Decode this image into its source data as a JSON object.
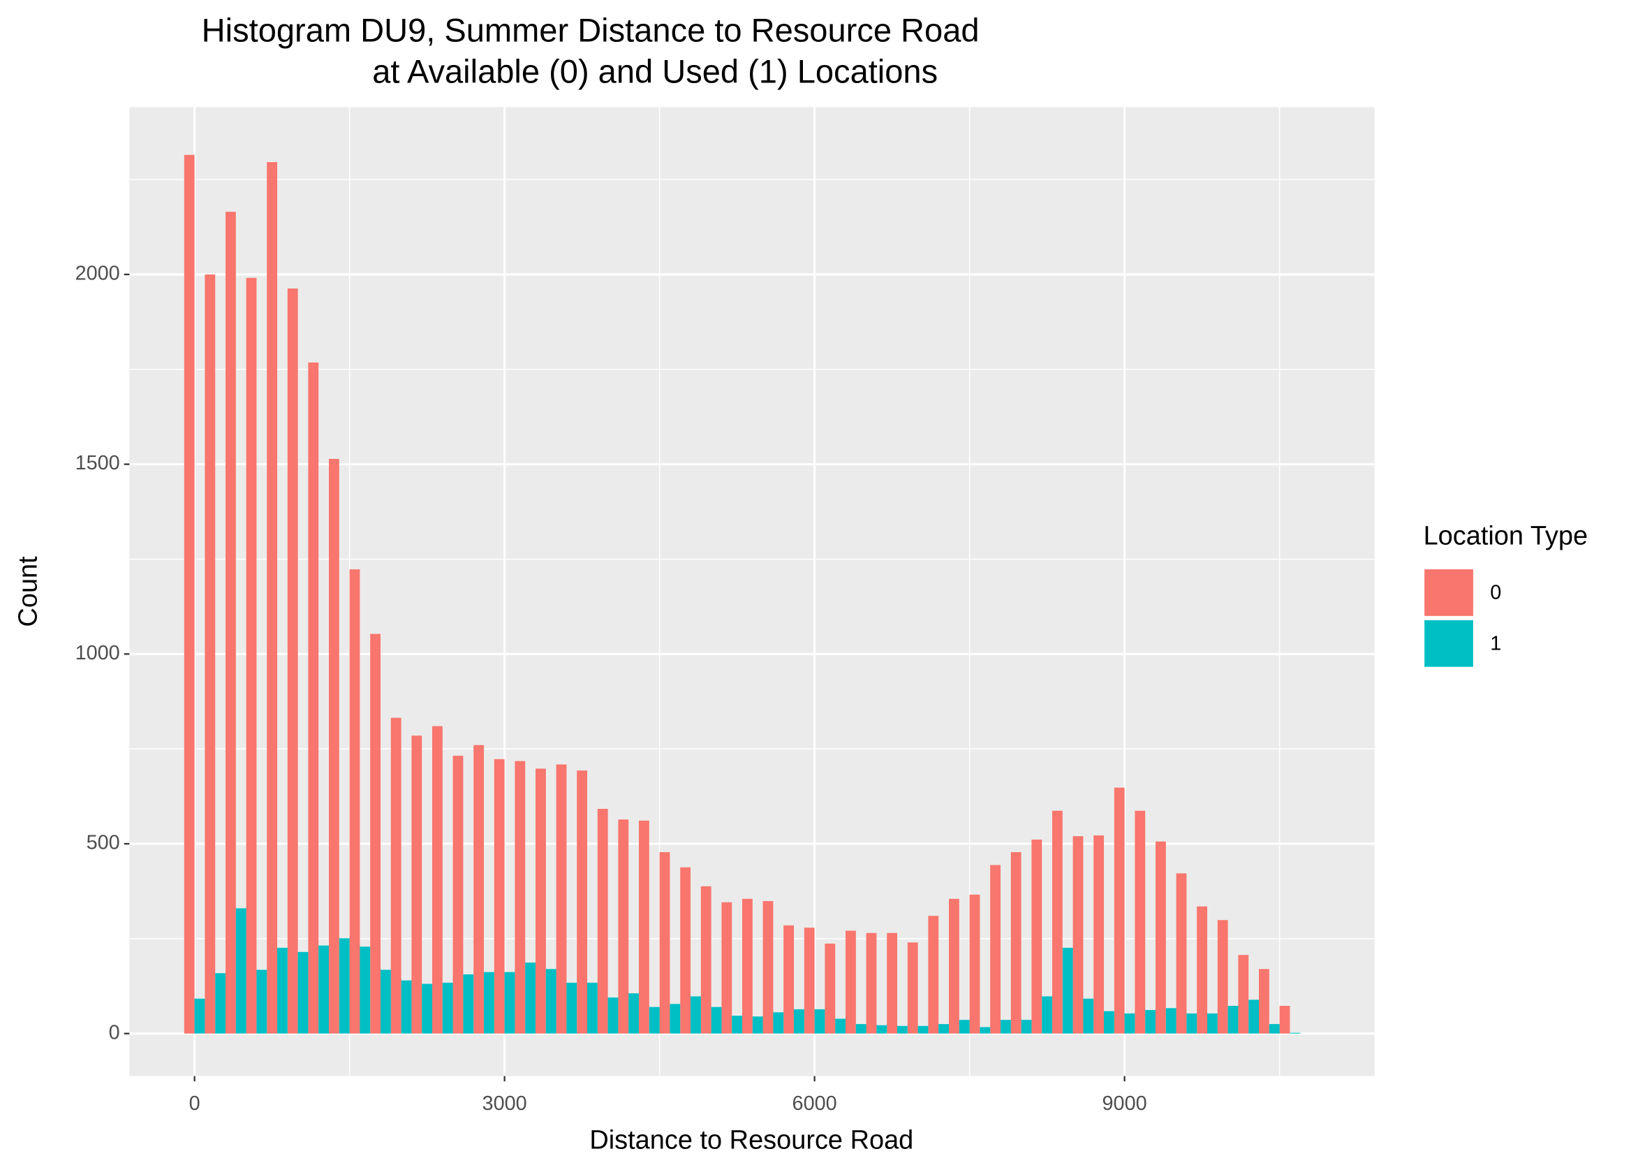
{
  "chart_data": {
    "type": "histogram",
    "title": "Histogram DU9, Summer Distance to Resource Road",
    "subtitle": "at Available (0) and Used (1) Locations",
    "x_label": "Distance to Resource Road",
    "y_label": "Count",
    "legend_title": "Location Type",
    "legend_position": "right",
    "grid": true,
    "bins": [
      -100,
      100,
      300,
      500,
      700,
      900,
      1100,
      1300,
      1500,
      1700,
      1900,
      2100,
      2300,
      2500,
      2700,
      2900,
      3100,
      3300,
      3500,
      3700,
      3900,
      4100,
      4300,
      4500,
      4700,
      4900,
      5100,
      5300,
      5500,
      5700,
      5900,
      6100,
      6300,
      6500,
      6700,
      6900,
      7100,
      7300,
      7500,
      7700,
      7900,
      8100,
      8300,
      8500,
      8700,
      8900,
      9100,
      9300,
      9500,
      9700,
      9900,
      10100,
      10300,
      10500,
      10700
    ],
    "series": [
      {
        "name": "0",
        "color": "#F8766D",
        "values": [
          2315,
          2000,
          2165,
          1991,
          2296,
          1963,
          1768,
          1514,
          1223,
          1053,
          832,
          785,
          810,
          732,
          760,
          723,
          718,
          698,
          709,
          693,
          592,
          564,
          561,
          478,
          438,
          388,
          346,
          355,
          349,
          285,
          279,
          237,
          271,
          265,
          265,
          240,
          310,
          355,
          366,
          444,
          478,
          511,
          587,
          520,
          522,
          648,
          587,
          506,
          422,
          335,
          299,
          207,
          170,
          73
        ]
      },
      {
        "name": "1",
        "color": "#00BFC4",
        "values": [
          92,
          159,
          330,
          168,
          226,
          215,
          232,
          251,
          229,
          168,
          140,
          131,
          134,
          156,
          162,
          162,
          187,
          170,
          134,
          134,
          95,
          106,
          70,
          78,
          98,
          70,
          47,
          45,
          56,
          64,
          64,
          39,
          25,
          22,
          20,
          20,
          25,
          36,
          17,
          36,
          36,
          98,
          226,
          92,
          59,
          53,
          62,
          67,
          53,
          53,
          73,
          89,
          25,
          2
        ]
      }
    ],
    "xlim": [
      -630,
      11420
    ],
    "ylim": [
      -112,
      2441
    ],
    "xticks": [
      0,
      3000,
      6000,
      9000
    ],
    "yticks": [
      0,
      500,
      1000,
      1500,
      2000
    ],
    "x_minor_grid": [
      1500,
      4500,
      7500,
      10500
    ],
    "y_minor_grid": [
      250,
      750,
      1250,
      1750,
      2250
    ]
  }
}
